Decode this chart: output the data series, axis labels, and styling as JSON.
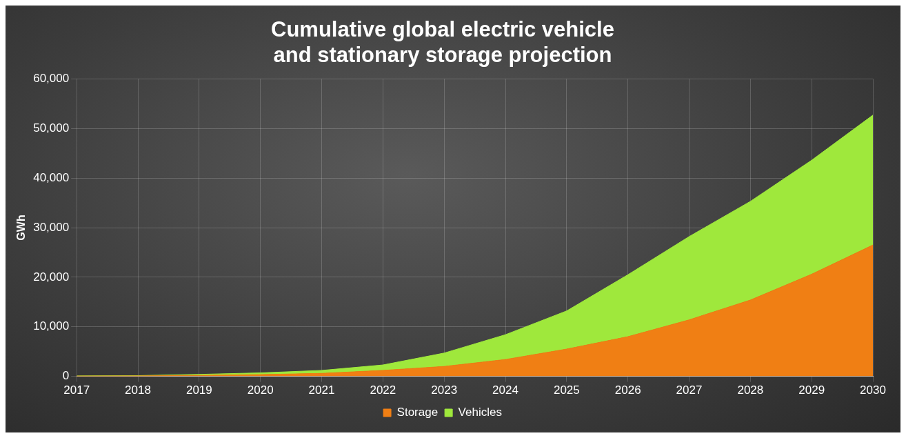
{
  "chart_data": {
    "type": "area",
    "title": "Cumulative global electric vehicle\nand stationary storage projection",
    "ylabel": "GWh",
    "stacked": true,
    "grid": true,
    "legend": "bottom",
    "x": [
      2017,
      2018,
      2019,
      2020,
      2021,
      2022,
      2023,
      2024,
      2025,
      2026,
      2027,
      2028,
      2029,
      2030
    ],
    "xlim": [
      2017,
      2030
    ],
    "xticks": [
      2017,
      2018,
      2019,
      2020,
      2021,
      2022,
      2023,
      2024,
      2025,
      2026,
      2027,
      2028,
      2029,
      2030
    ],
    "ylim": [
      0,
      60000
    ],
    "yticks": [
      {
        "value": 0,
        "label": "0"
      },
      {
        "value": 10000,
        "label": "10,000"
      },
      {
        "value": 20000,
        "label": "20,000"
      },
      {
        "value": 30000,
        "label": "30,000"
      },
      {
        "value": 40000,
        "label": "40,000"
      },
      {
        "value": 50000,
        "label": "50,000"
      },
      {
        "value": 60000,
        "label": "60,000"
      }
    ],
    "series": [
      {
        "name": "Storage",
        "color": "#f07f14",
        "values": [
          50,
          80,
          200,
          350,
          600,
          1200,
          2000,
          3400,
          5500,
          8000,
          11400,
          15400,
          20600,
          26500
        ]
      },
      {
        "name": "Vehicles",
        "color": "#9fe83c",
        "values": [
          50,
          70,
          200,
          350,
          600,
          1100,
          2700,
          5000,
          7700,
          12500,
          16800,
          19900,
          23000,
          26200
        ]
      }
    ]
  }
}
